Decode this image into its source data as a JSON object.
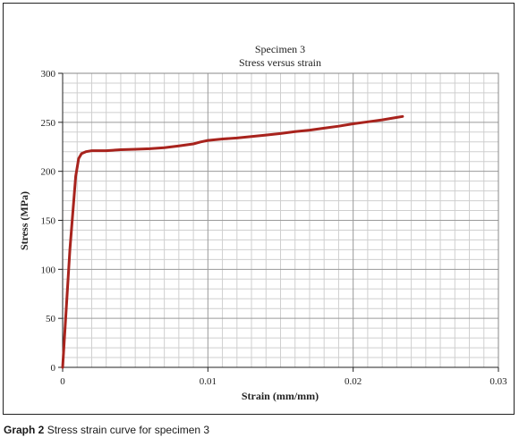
{
  "chart_data": {
    "type": "line",
    "title": "Specimen 3",
    "subtitle": "Stress versus strain",
    "xlabel": "Strain (mm/mm)",
    "ylabel": "Stress (MPa)",
    "xlim": [
      0,
      0.03
    ],
    "ylim": [
      0,
      300
    ],
    "x_ticks": [
      "0",
      "0.01",
      "0.02",
      "0.03"
    ],
    "y_ticks": [
      "0",
      "50",
      "100",
      "150",
      "200",
      "250",
      "300"
    ],
    "grid": true,
    "series": [
      {
        "color": "#a8231d",
        "x": [
          0,
          0.0005,
          0.0009,
          0.0011,
          0.0013,
          0.0016,
          0.002,
          0.003,
          0.004,
          0.005,
          0.006,
          0.007,
          0.008,
          0.009,
          0.0095,
          0.01,
          0.011,
          0.012,
          0.013,
          0.014,
          0.015,
          0.016,
          0.017,
          0.018,
          0.019,
          0.02,
          0.021,
          0.022,
          0.023,
          0.0234
        ],
        "y": [
          0,
          120,
          195,
          213,
          218,
          220,
          221,
          221,
          222,
          222.5,
          223,
          224,
          226,
          228,
          230,
          231.5,
          233,
          234,
          235.5,
          237,
          238.5,
          240.5,
          242,
          244,
          246,
          248.5,
          250.5,
          252.5,
          255,
          256
        ]
      }
    ]
  },
  "caption": {
    "label": "Graph 2",
    "text": "Stress strain curve for specimen 3"
  }
}
